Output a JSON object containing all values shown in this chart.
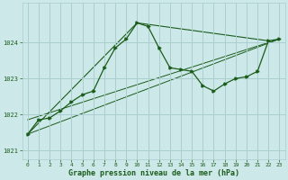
{
  "xlabel": "Graphe pression niveau de la mer (hPa)",
  "ylim": [
    1020.75,
    1025.1
  ],
  "xlim": [
    -0.5,
    23.5
  ],
  "yticks": [
    1021,
    1022,
    1023,
    1024
  ],
  "xticks": [
    0,
    1,
    2,
    3,
    4,
    5,
    6,
    7,
    8,
    9,
    10,
    11,
    12,
    13,
    14,
    15,
    16,
    17,
    18,
    19,
    20,
    21,
    22,
    23
  ],
  "bg_color": "#cce8e8",
  "grid_color": "#aacece",
  "line_color": "#1a5c1a",
  "line1_x": [
    0,
    1,
    2,
    3,
    4,
    5,
    6,
    7,
    8,
    9,
    10,
    11,
    12,
    13,
    14,
    15,
    16,
    17,
    18,
    19,
    20,
    21,
    22,
    23
  ],
  "line1_y": [
    1021.45,
    1021.85,
    1021.9,
    1022.1,
    1022.35,
    1022.55,
    1022.65,
    1023.3,
    1023.85,
    1024.1,
    1024.55,
    1024.45,
    1023.85,
    1023.3,
    1023.25,
    1023.2,
    1022.8,
    1022.65,
    1022.85,
    1023.0,
    1023.05,
    1023.2,
    1024.05,
    1024.1
  ],
  "line2_x": [
    0,
    10,
    22
  ],
  "line2_y": [
    1021.45,
    1024.55,
    1024.05
  ],
  "line3_x": [
    0,
    23
  ],
  "line3_y": [
    1021.45,
    1024.1
  ],
  "line4_x": [
    0,
    23
  ],
  "line4_y": [
    1021.85,
    1024.1
  ]
}
